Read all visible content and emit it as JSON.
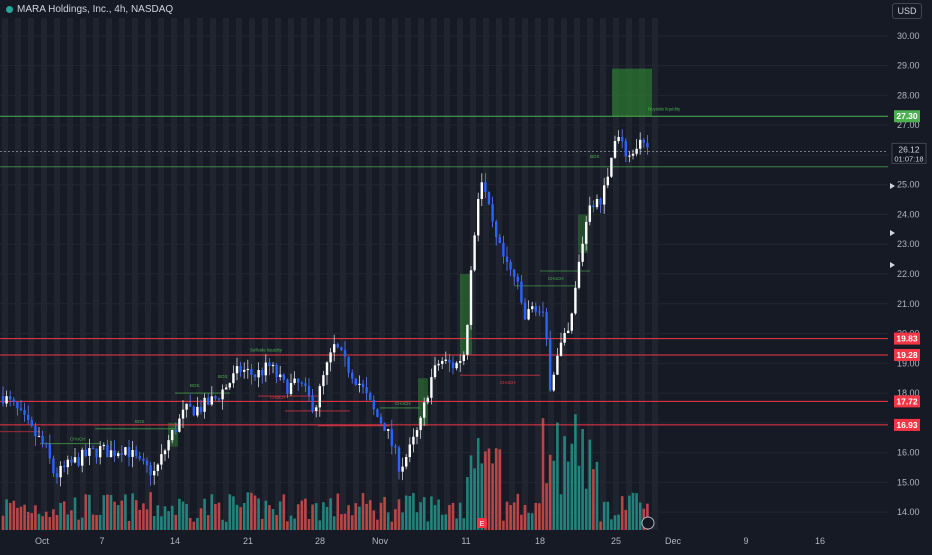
{
  "header": {
    "symbol": "MARA Holdings, Inc., 4h, NASDAQ",
    "currency": "USD"
  },
  "chart_data": {
    "type": "candlestick",
    "y_axis": {
      "min": 13.4,
      "max": 30.6,
      "ticks": [
        "30.00",
        "29.00",
        "28.00",
        "27.00",
        "26.00",
        "25.00",
        "24.00",
        "23.00",
        "22.00",
        "21.00",
        "20.00",
        "19.00",
        "18.00",
        "17.00",
        "16.00",
        "15.00",
        "14.00"
      ],
      "position": "right"
    },
    "x_axis": {
      "labels": [
        "Oct",
        "7",
        "14",
        "21",
        "28",
        "Nov",
        "11",
        "18",
        "25",
        "Dec",
        "9",
        "16"
      ]
    },
    "current_price": {
      "value": "26.12",
      "countdown": "01:07:18"
    },
    "price_lines": [
      {
        "value": 27.3,
        "label": "27.30",
        "color": "#4caf50"
      },
      {
        "value": 19.83,
        "label": "19.83",
        "color": "#f23645"
      },
      {
        "value": 19.28,
        "label": "19.28",
        "color": "#f23645"
      },
      {
        "value": 17.72,
        "label": "17.72",
        "color": "#f23645"
      },
      {
        "value": 16.93,
        "label": "16.93",
        "color": "#f23645"
      }
    ],
    "annotations": [
      {
        "text": "Sellside liquidity",
        "type": "zone"
      },
      {
        "text": "Buyside liquidity",
        "type": "zone"
      },
      {
        "text": "BOS",
        "type": "structure"
      },
      {
        "text": "CHoCH",
        "type": "structure"
      }
    ],
    "colors": {
      "up": "#ffffff",
      "down": "#2962ff",
      "vol_up": "#26a69a",
      "vol_down": "#ef5350",
      "background": "#161a25",
      "stripe": "#2a2e39"
    },
    "grid": true
  }
}
